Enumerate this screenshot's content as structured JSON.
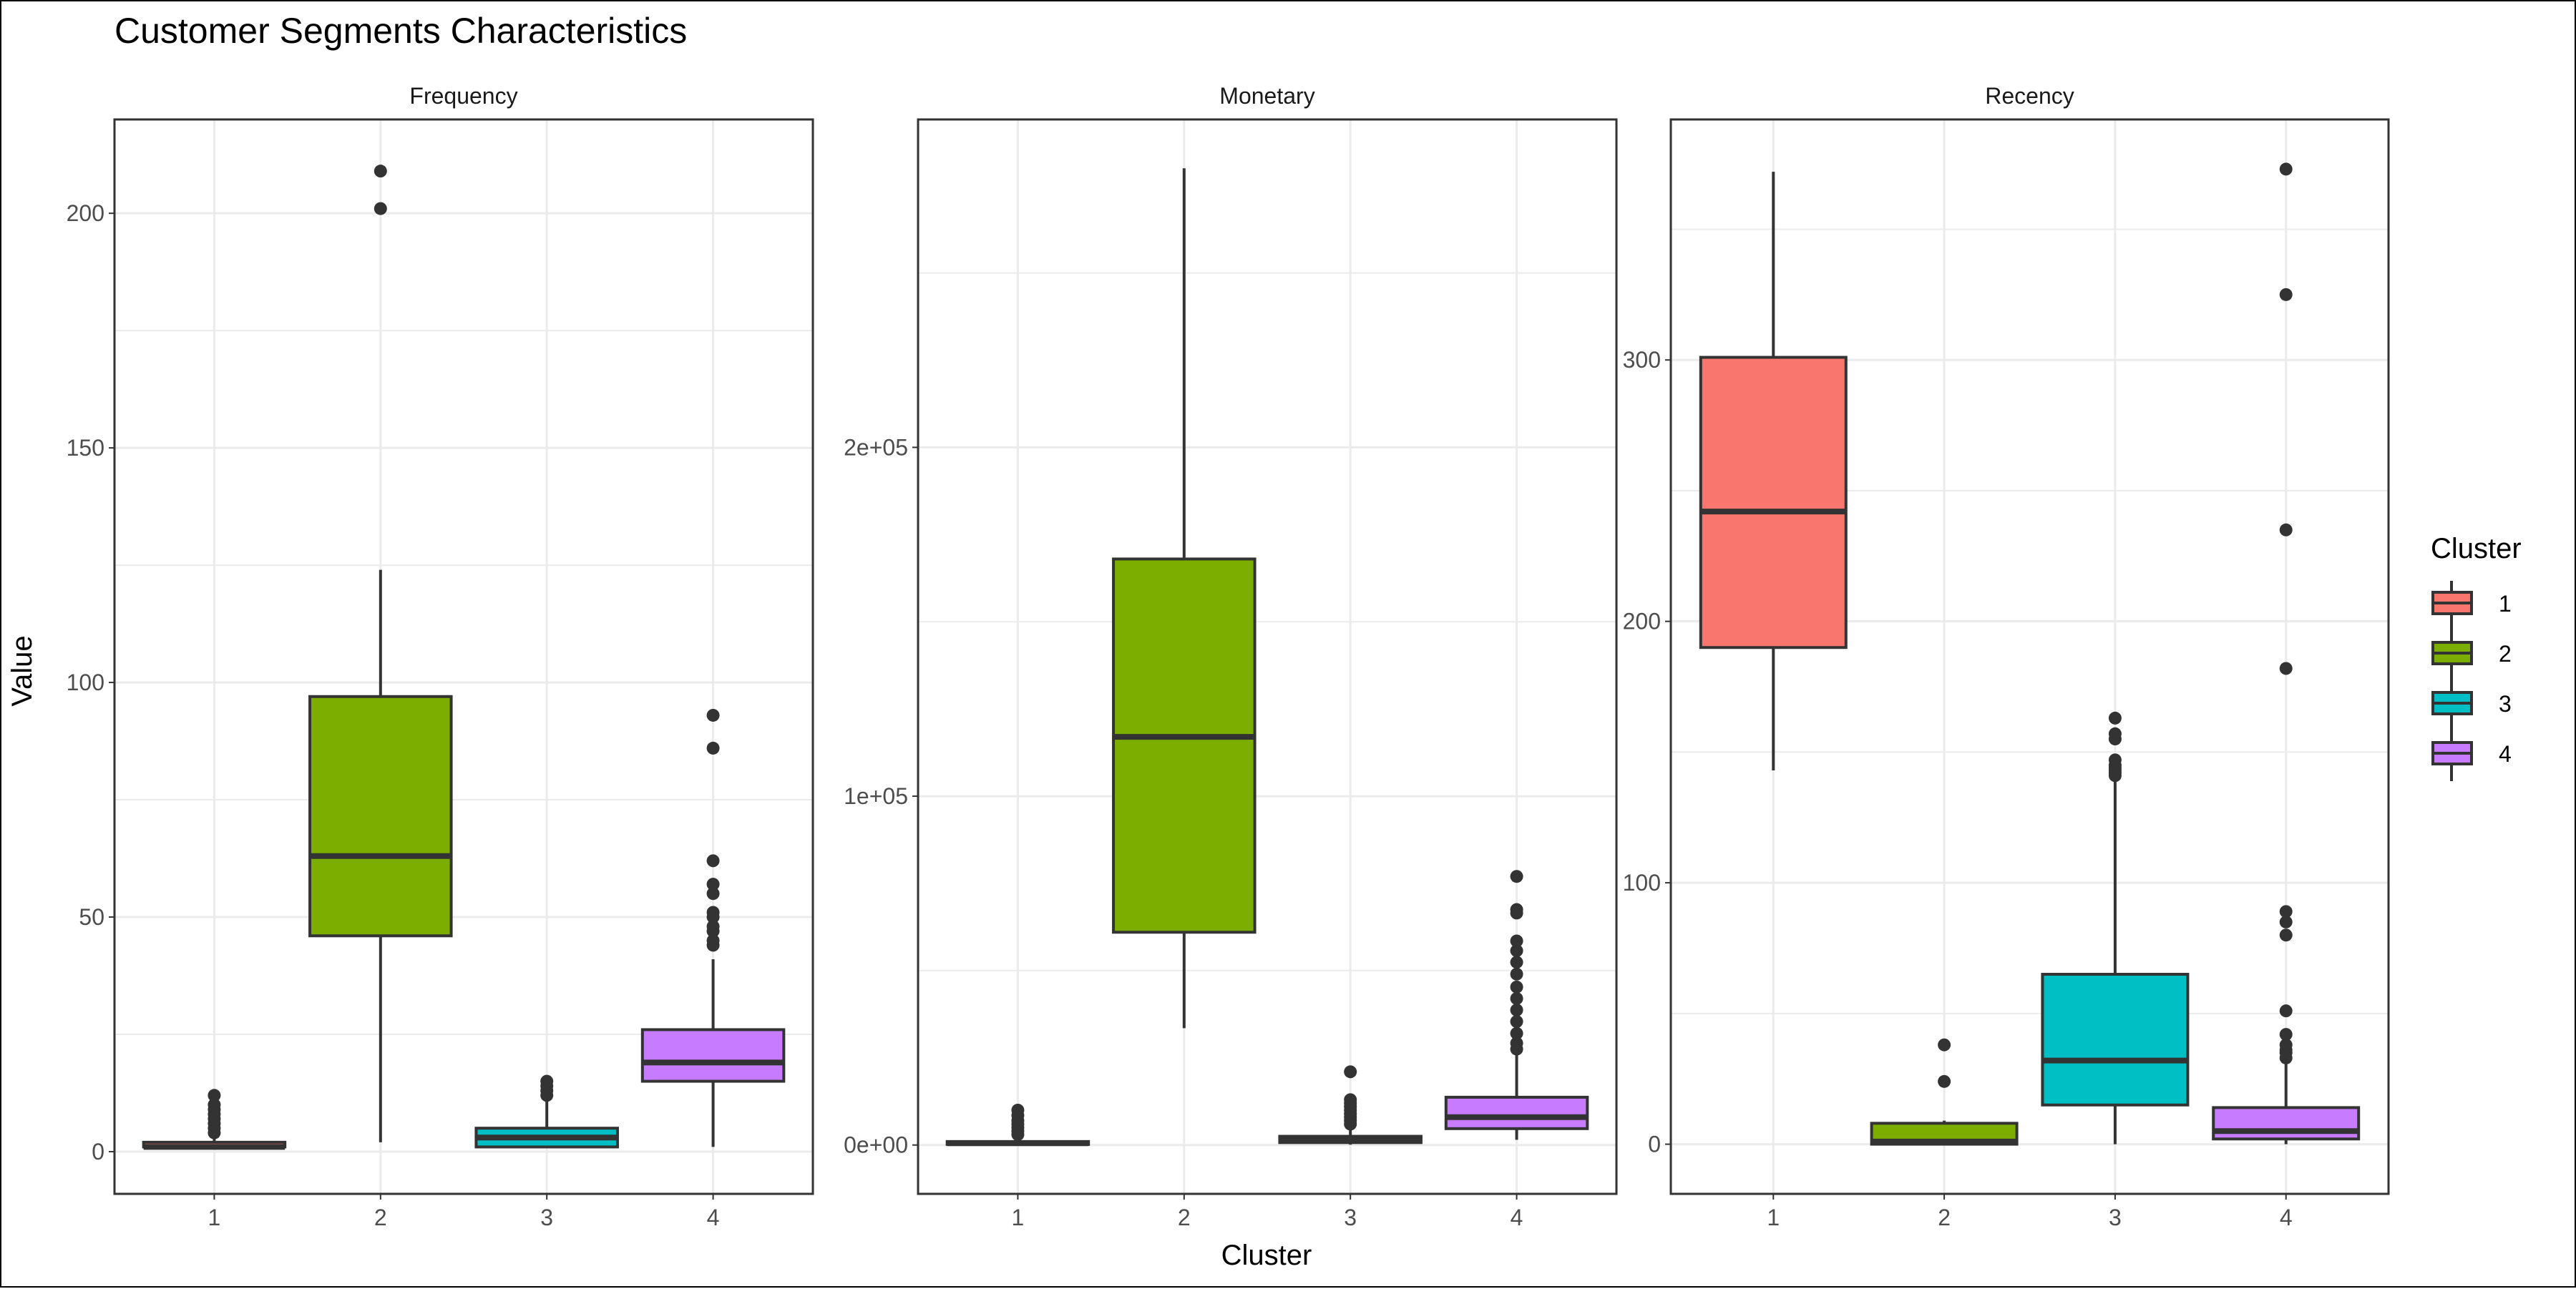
{
  "title": "Customer Segments Characteristics",
  "xlabel": "Cluster",
  "ylabel": "Value",
  "legend": {
    "title": "Cluster",
    "placement": "right",
    "entries": [
      "1",
      "2",
      "3",
      "4"
    ],
    "colors": [
      "#F8766D",
      "#7CAE00",
      "#00BFC4",
      "#C77CFF"
    ]
  },
  "chart_data": [
    {
      "type": "box",
      "facet": "Frequency",
      "categories": [
        "1",
        "2",
        "3",
        "4"
      ],
      "ylim": [
        -9,
        220
      ],
      "yticks": [
        0,
        50,
        100,
        150,
        200
      ],
      "ytick_labels": [
        "0",
        "50",
        "100",
        "150",
        "200"
      ],
      "grid": true,
      "boxes": [
        {
          "cluster": "1",
          "min": 1,
          "q1": 1,
          "median": 1,
          "q3": 2,
          "max": 3,
          "outliers": [
            4,
            5,
            6,
            7,
            8,
            9,
            10,
            12
          ]
        },
        {
          "cluster": "2",
          "min": 2,
          "q1": 46,
          "median": 63,
          "q3": 97,
          "max": 124,
          "outliers": [
            201,
            209
          ]
        },
        {
          "cluster": "3",
          "min": 1,
          "q1": 1,
          "median": 3,
          "q3": 5,
          "max": 11,
          "outliers": [
            12,
            13,
            14,
            15
          ]
        },
        {
          "cluster": "4",
          "min": 1,
          "q1": 15,
          "median": 19,
          "q3": 26,
          "max": 41,
          "outliers": [
            44,
            45,
            47,
            48,
            50,
            51,
            55,
            57,
            62,
            86,
            93
          ]
        }
      ]
    },
    {
      "type": "box",
      "facet": "Monetary",
      "categories": [
        "1",
        "2",
        "3",
        "4"
      ],
      "ylim": [
        -14000,
        294000
      ],
      "yticks": [
        0,
        100000,
        200000
      ],
      "ytick_labels": [
        "0e+00",
        "1e+05",
        "2e+05"
      ],
      "grid": true,
      "boxes": [
        {
          "cluster": "1",
          "min": 0,
          "q1": 200,
          "median": 500,
          "q3": 1000,
          "max": 2500,
          "outliers": [
            3000,
            4000,
            5000,
            6000,
            7000,
            8500,
            10000
          ]
        },
        {
          "cluster": "2",
          "min": 33500,
          "q1": 61000,
          "median": 117000,
          "q3": 168000,
          "max": 280000,
          "outliers": []
        },
        {
          "cluster": "3",
          "min": 100,
          "q1": 700,
          "median": 1500,
          "q3": 2500,
          "max": 5500,
          "outliers": [
            6000,
            7000,
            8000,
            9000,
            10000,
            11000,
            12000,
            13000,
            21000
          ]
        },
        {
          "cluster": "4",
          "min": 1500,
          "q1": 4700,
          "median": 8000,
          "q3": 13700,
          "max": 26000,
          "outliers": [
            27500,
            29200,
            32000,
            35400,
            38700,
            42000,
            45300,
            49000,
            52400,
            55700,
            58500,
            66500,
            67500,
            77000
          ]
        }
      ]
    },
    {
      "type": "box",
      "facet": "Recency",
      "categories": [
        "1",
        "2",
        "3",
        "4"
      ],
      "ylim": [
        -19,
        392
      ],
      "yticks": [
        0,
        100,
        200,
        300
      ],
      "ytick_labels": [
        "0",
        "100",
        "200",
        "300"
      ],
      "grid": true,
      "boxes": [
        {
          "cluster": "1",
          "min": 143,
          "q1": 190,
          "median": 242,
          "q3": 301,
          "max": 372,
          "outliers": []
        },
        {
          "cluster": "2",
          "min": 0,
          "q1": 0,
          "median": 1,
          "q3": 8,
          "max": 9,
          "outliers": [
            24,
            38
          ]
        },
        {
          "cluster": "3",
          "min": 0,
          "q1": 15,
          "median": 32,
          "q3": 65,
          "max": 140,
          "outliers": [
            141,
            142,
            143,
            144,
            145,
            147,
            155,
            157,
            163
          ]
        },
        {
          "cluster": "4",
          "min": 0,
          "q1": 2,
          "median": 5,
          "q3": 14,
          "max": 32,
          "outliers": [
            33,
            35,
            36,
            38,
            42,
            51,
            80,
            85,
            89,
            182,
            235,
            325,
            373
          ]
        }
      ]
    }
  ]
}
